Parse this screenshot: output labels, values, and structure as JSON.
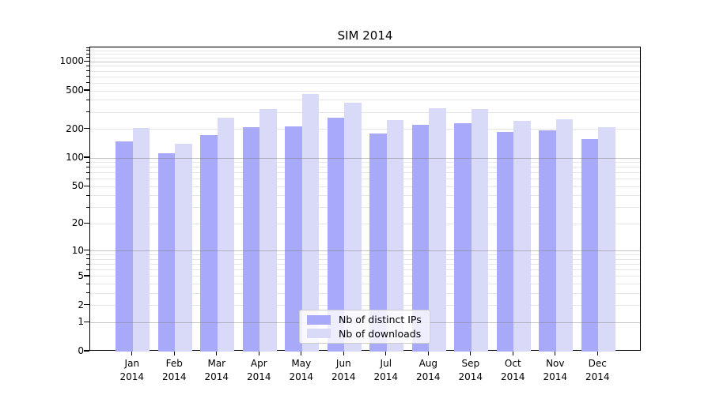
{
  "title": "SIM 2014",
  "chart_data": {
    "type": "bar",
    "title": "SIM 2014",
    "categories": [
      "Jan",
      "Feb",
      "Mar",
      "Apr",
      "May",
      "Jun",
      "Jul",
      "Aug",
      "Sep",
      "Oct",
      "Nov",
      "Dec"
    ],
    "year_label": "2014",
    "series": [
      {
        "name": "Nb of distinct IPs",
        "color": "#a9a9fa",
        "values": [
          150,
          112,
          175,
          210,
          213,
          265,
          180,
          222,
          230,
          186,
          196,
          158
        ]
      },
      {
        "name": "Nb of downloads",
        "color": "#d9d9f8",
        "values": [
          207,
          140,
          262,
          325,
          460,
          376,
          249,
          332,
          322,
          246,
          255,
          210
        ]
      }
    ],
    "y_axis": {
      "scale": "log1p",
      "tick_labels": [
        0,
        1,
        2,
        5,
        10,
        20,
        50,
        100,
        200,
        500,
        1000
      ],
      "major_gridlines": [
        1,
        10,
        100,
        1000
      ],
      "minor_gridlines": [
        2,
        3,
        4,
        5,
        6,
        7,
        8,
        9,
        20,
        30,
        40,
        50,
        60,
        70,
        80,
        90,
        200,
        300,
        400,
        500,
        600,
        700,
        800,
        900,
        1100,
        1200,
        1300,
        1400
      ],
      "range": [
        0,
        1414
      ]
    },
    "x_axis": {
      "label_lines": 2
    },
    "legend": {
      "position": "lower-center"
    },
    "grid": true,
    "colors": {
      "major_grid": "#b9b9b9",
      "minor_grid": "#e6e6e6",
      "spine": "#000000"
    }
  }
}
